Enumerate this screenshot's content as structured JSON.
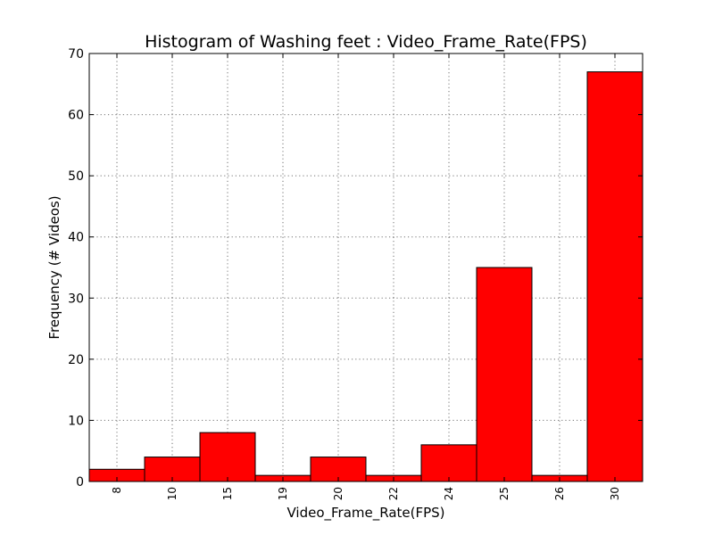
{
  "chart_data": {
    "type": "bar",
    "title": "Histogram of Washing feet : Video_Frame_Rate(FPS)",
    "xlabel": "Video_Frame_Rate(FPS)",
    "ylabel": "Frequency (# Videos)",
    "categories": [
      "8",
      "10",
      "15",
      "19",
      "20",
      "22",
      "24",
      "25",
      "26",
      "30"
    ],
    "values": [
      2,
      4,
      8,
      1,
      4,
      1,
      6,
      35,
      1,
      67
    ],
    "ylim": [
      0,
      70
    ],
    "yticks": [
      "0",
      "10",
      "20",
      "30",
      "40",
      "50",
      "60",
      "70"
    ],
    "grid": true,
    "bar_color": "#ff0000"
  }
}
